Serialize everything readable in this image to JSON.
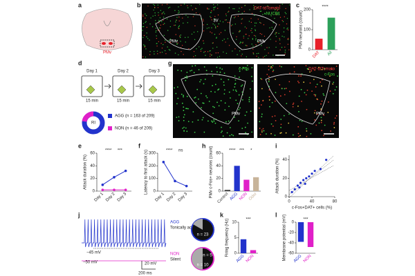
{
  "panels": {
    "a": {
      "letter": "a",
      "label": "PMv"
    },
    "b": {
      "letter": "b",
      "channels": [
        "DAT-tdTomato",
        "NUCB1"
      ],
      "regions": [
        "3V",
        "PMv",
        "PMv"
      ]
    },
    "c": {
      "letter": "c",
      "chart": {
        "type": "bar",
        "ylabel": "PMv neurons (count)",
        "categories": [
          "DAT",
          "All"
        ],
        "values": [
          55,
          160
        ],
        "colors": [
          "#e8202a",
          "#2ca05a"
        ],
        "ylim": [
          0,
          200
        ],
        "yticks": [
          0,
          100,
          200
        ],
        "stars": [
          "****"
        ]
      }
    },
    "d": {
      "letter": "d",
      "days": [
        "Day 1",
        "Day 2",
        "Day 3"
      ],
      "duration": [
        "15 min",
        "15 min",
        "15 min"
      ],
      "donut": "RI",
      "legend": [
        "AGG (n = 163 of 209)",
        "NON (n = 46 of 209)"
      ]
    },
    "g": {
      "letter": "g",
      "left": [
        "c-Fos"
      ],
      "right": [
        "DAT-tdTomato",
        "c-Fos"
      ],
      "regions": [
        "PMv",
        "PMv"
      ]
    },
    "e": {
      "letter": "e",
      "chart": {
        "type": "line",
        "ylabel": "Attack duration (%)",
        "categories": [
          "Day 1",
          "Day 2",
          "Day 3"
        ],
        "series": [
          {
            "color": "#2233cc",
            "values": [
              10,
              22,
              32
            ]
          },
          {
            "color": "#e020c8",
            "values": [
              2,
              2,
              2
            ]
          }
        ],
        "ylim": [
          0,
          60
        ],
        "yticks": [
          0,
          20,
          40,
          60
        ],
        "stars": [
          "****",
          "***"
        ]
      }
    },
    "f": {
      "letter": "f",
      "chart": {
        "type": "line",
        "ylabel": "Latency to first attack (s)",
        "categories": [
          "Day 1",
          "Day 2",
          "Day 3"
        ],
        "series": [
          {
            "color": "#2233cc",
            "values": [
              230,
              80,
              40
            ]
          }
        ],
        "ylim": [
          0,
          300
        ],
        "yticks": [
          0,
          100,
          200,
          300
        ],
        "stars": [
          "****",
          "ns"
        ]
      }
    },
    "h": {
      "letter": "h",
      "chart": {
        "type": "bar",
        "ylabel": "PMv c-Fos+ neurons (count)",
        "categories": [
          "Control",
          "AGG",
          "NON",
          "Odor"
        ],
        "values": [
          2,
          40,
          18,
          22
        ],
        "colors": [
          "#444444",
          "#2233cc",
          "#e020c8",
          "#c8b49a"
        ],
        "ylim": [
          0,
          60
        ],
        "yticks": [
          0,
          20,
          40,
          60
        ],
        "stars": [
          "****",
          "***",
          "*"
        ]
      }
    },
    "i": {
      "letter": "i",
      "chart": {
        "type": "scatter",
        "ylabel": "Attack duration (%)",
        "xlabel": "c-Fos+DAT+ cells (%)",
        "color": "#2233cc",
        "x": [
          5,
          10,
          15,
          18,
          20,
          25,
          28,
          30,
          35,
          40,
          45,
          55,
          65
        ],
        "values": [
          5,
          8,
          12,
          10,
          15,
          18,
          14,
          20,
          22,
          25,
          28,
          30,
          40
        ],
        "xlim": [
          0,
          80
        ],
        "ylim": [
          0,
          45
        ],
        "xticks": [
          0,
          40,
          80
        ],
        "yticks": [
          0,
          20,
          40
        ]
      }
    },
    "j": {
      "letter": "j",
      "agg": [
        "AGG",
        "Tonically active",
        "n = 23"
      ],
      "non": [
        "NON",
        "Silent",
        "n = 5",
        "n = 10"
      ],
      "potentials": [
        "−45 mV",
        "−50 mV"
      ],
      "scale": [
        "20 mV",
        "200 ms"
      ]
    },
    "k": {
      "letter": "k",
      "chart": {
        "type": "bar",
        "ylabel": "Firing frequency (Hz)",
        "categories": [
          "AGG",
          "NON"
        ],
        "values": [
          4.5,
          1
        ],
        "colors": [
          "#2233cc",
          "#e020c8"
        ],
        "ylim": [
          0,
          10
        ],
        "yticks": [
          0,
          5,
          10
        ],
        "stars": [
          "***"
        ]
      }
    },
    "l": {
      "letter": "l",
      "chart": {
        "type": "bar",
        "ylabel": "Membrane potential (mV)",
        "categories": [
          "AGG",
          "NON"
        ],
        "values": [
          -38,
          -48
        ],
        "colors": [
          "#2233cc",
          "#e020c8"
        ],
        "ylim": [
          -60,
          0
        ],
        "yticks": [
          0,
          -20,
          -40,
          -60
        ],
        "stars": [
          "***"
        ]
      }
    }
  }
}
